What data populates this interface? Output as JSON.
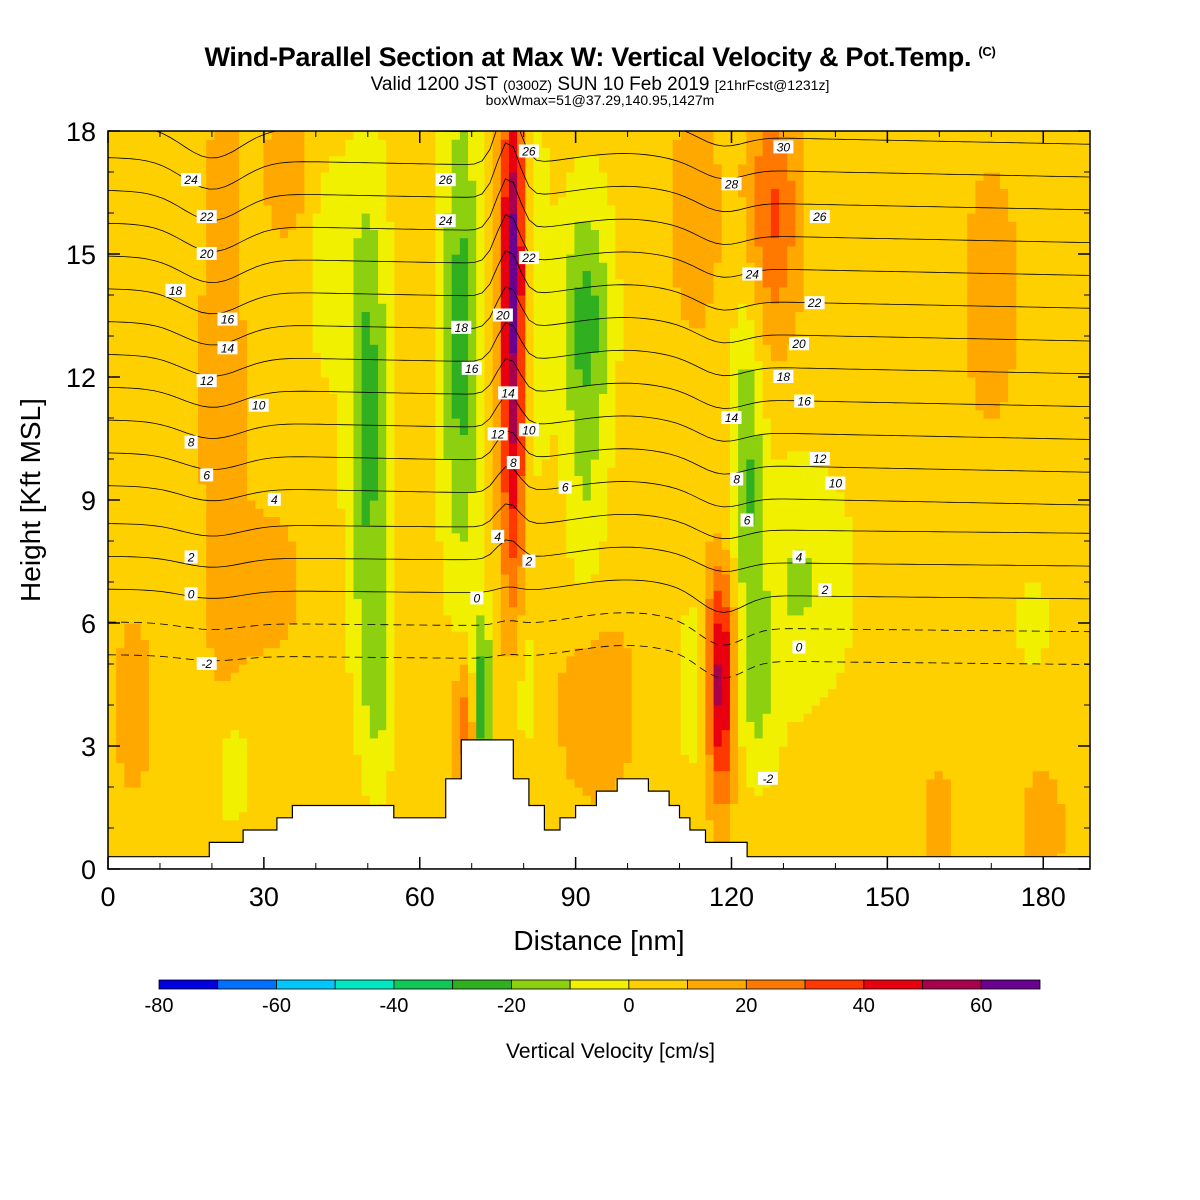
{
  "header": {
    "title": "Wind-Parallel Section at Max W: Vertical Velocity & Pot.Temp.",
    "title_mark": "(C)",
    "valid_a": "Valid 1200 JST ",
    "valid_b": "(0300Z)",
    "valid_c": " SUN 10 Feb 2019 ",
    "valid_d": "[21hrFcst@1231z]",
    "box_info": "boxWmax=51@37.29,140.95,1427m"
  },
  "chart_data": {
    "type": "heatmap",
    "xlabel": "Distance [nm]",
    "ylabel": "Height [Kft MSL]",
    "xlim": [
      0,
      189
    ],
    "ylim": [
      0,
      18
    ],
    "x_ticks": [
      0,
      30,
      60,
      90,
      120,
      150,
      180
    ],
    "y_ticks": [
      0,
      3,
      6,
      9,
      12,
      15,
      18
    ],
    "colorbar": {
      "title": "Vertical Velocity [cm/s]",
      "bounds": [
        -80,
        -70,
        -60,
        -50,
        -40,
        -30,
        -20,
        -10,
        0,
        10,
        20,
        30,
        40,
        50,
        60,
        70
      ],
      "labels": [
        -80,
        -60,
        -40,
        -20,
        0,
        20,
        40,
        60
      ],
      "colors": [
        "#0000e0",
        "#0070ff",
        "#00c8ff",
        "#00e8c0",
        "#10c858",
        "#30b020",
        "#8cd010",
        "#f0f000",
        "#ffd000",
        "#ffa800",
        "#ff7800",
        "#ff3800",
        "#e80010",
        "#a8004c",
        "#6a0090"
      ]
    },
    "background_w": 5,
    "w_features": [
      {
        "x": 22,
        "y": 12,
        "sx": 4,
        "sy": 7,
        "v": 14
      },
      {
        "x": 30,
        "y": 7,
        "sx": 8,
        "sy": 2,
        "v": 10
      },
      {
        "x": 35,
        "y": 17,
        "sx": 6,
        "sy": 2,
        "v": 10
      },
      {
        "x": 50,
        "y": 11,
        "sx": 4,
        "sy": 6,
        "v": -30
      },
      {
        "x": 42,
        "y": 15,
        "sx": 4,
        "sy": 3,
        "v": -12
      },
      {
        "x": 52,
        "y": 4.5,
        "sx": 3,
        "sy": 2.5,
        "v": -14
      },
      {
        "x": 68,
        "y": 13,
        "sx": 4,
        "sy": 6,
        "v": -30
      },
      {
        "x": 72,
        "y": 4,
        "sx": 2,
        "sy": 2,
        "v": -38
      },
      {
        "x": 69,
        "y": 3.6,
        "sx": 2.5,
        "sy": 1.5,
        "v": 26
      },
      {
        "x": 78,
        "y": 12.5,
        "sx": 2.5,
        "sy": 6,
        "v": 52
      },
      {
        "x": 78,
        "y": 16,
        "sx": 2.5,
        "sy": 3,
        "v": 20
      },
      {
        "x": 82,
        "y": 14,
        "sx": 3,
        "sy": 5,
        "v": -14
      },
      {
        "x": 92,
        "y": 13.5,
        "sx": 5,
        "sy": 3,
        "v": -28
      },
      {
        "x": 92,
        "y": 9,
        "sx": 4,
        "sy": 3,
        "v": -12
      },
      {
        "x": 94,
        "y": 4,
        "sx": 8,
        "sy": 2.5,
        "v": 12
      },
      {
        "x": 80,
        "y": 4.5,
        "sx": 3,
        "sy": 2,
        "v": -12
      },
      {
        "x": 112,
        "y": 4.5,
        "sx": 2,
        "sy": 2,
        "v": -14
      },
      {
        "x": 118,
        "y": 4,
        "sx": 2.5,
        "sy": 2.5,
        "v": 42
      },
      {
        "x": 118,
        "y": 6,
        "sx": 3,
        "sy": 2,
        "v": 18
      },
      {
        "x": 123,
        "y": 10,
        "sx": 3,
        "sy": 4,
        "v": -24
      },
      {
        "x": 133,
        "y": 7,
        "sx": 10,
        "sy": 3,
        "v": -16
      },
      {
        "x": 125,
        "y": 4,
        "sx": 4,
        "sy": 2,
        "v": -14
      },
      {
        "x": 128,
        "y": 16,
        "sx": 5,
        "sy": 3,
        "v": 26
      },
      {
        "x": 113,
        "y": 16,
        "sx": 5,
        "sy": 3,
        "v": 12
      },
      {
        "x": 170,
        "y": 14,
        "sx": 5,
        "sy": 3,
        "v": 14
      },
      {
        "x": 178,
        "y": 6,
        "sx": 3,
        "sy": 1,
        "v": -14
      },
      {
        "x": 24,
        "y": 2.3,
        "sx": 3,
        "sy": 1.2,
        "v": -16
      },
      {
        "x": 5,
        "y": 4,
        "sx": 5,
        "sy": 3,
        "v": 8
      },
      {
        "x": 160,
        "y": 1,
        "sx": 3,
        "sy": 1.5,
        "v": 12
      },
      {
        "x": 180,
        "y": 1,
        "sx": 4,
        "sy": 1.5,
        "v": 12
      }
    ],
    "terrain": [
      {
        "x0": 0,
        "x1": 19.5,
        "h": 0.3
      },
      {
        "x0": 19.5,
        "x1": 26,
        "h": 0.65
      },
      {
        "x0": 26,
        "x1": 32.5,
        "h": 0.95
      },
      {
        "x0": 32.5,
        "x1": 35.5,
        "h": 1.25
      },
      {
        "x0": 35.5,
        "x1": 55,
        "h": 1.55
      },
      {
        "x0": 55,
        "x1": 65,
        "h": 1.25
      },
      {
        "x0": 65,
        "x1": 68,
        "h": 2.2
      },
      {
        "x0": 68,
        "x1": 78,
        "h": 3.15
      },
      {
        "x0": 78,
        "x1": 81,
        "h": 2.2
      },
      {
        "x0": 81,
        "x1": 84,
        "h": 1.55
      },
      {
        "x0": 84,
        "x1": 87,
        "h": 0.95
      },
      {
        "x0": 87,
        "x1": 90,
        "h": 1.25
      },
      {
        "x0": 90,
        "x1": 94,
        "h": 1.55
      },
      {
        "x0": 94,
        "x1": 98,
        "h": 1.9
      },
      {
        "x0": 98,
        "x1": 104,
        "h": 2.2
      },
      {
        "x0": 104,
        "x1": 108,
        "h": 1.9
      },
      {
        "x0": 108,
        "x1": 110,
        "h": 1.55
      },
      {
        "x0": 110,
        "x1": 112,
        "h": 1.25
      },
      {
        "x0": 112,
        "x1": 115,
        "h": 0.95
      },
      {
        "x0": 115,
        "x1": 120,
        "h": 0.65
      },
      {
        "x0": 120,
        "x1": 123,
        "h": 0.65
      },
      {
        "x0": 123,
        "x1": 189,
        "h": 0.3
      }
    ],
    "theta_levels": [
      -4,
      -2,
      0,
      2,
      4,
      6,
      8,
      10,
      12,
      14,
      16,
      18,
      20,
      22,
      24,
      26,
      28,
      30
    ],
    "theta_labels": [
      {
        "text": "24",
        "x": 16,
        "y": 16.8
      },
      {
        "text": "22",
        "x": 19,
        "y": 15.9
      },
      {
        "text": "20",
        "x": 19,
        "y": 15.0
      },
      {
        "text": "18",
        "x": 13,
        "y": 14.1
      },
      {
        "text": "16",
        "x": 23,
        "y": 13.4
      },
      {
        "text": "14",
        "x": 23,
        "y": 12.7
      },
      {
        "text": "12",
        "x": 19,
        "y": 11.9
      },
      {
        "text": "10",
        "x": 29,
        "y": 11.3
      },
      {
        "text": "8",
        "x": 16,
        "y": 10.4
      },
      {
        "text": "6",
        "x": 19,
        "y": 9.6
      },
      {
        "text": "4",
        "x": 32,
        "y": 9.0
      },
      {
        "text": "2",
        "x": 16,
        "y": 7.6
      },
      {
        "text": "0",
        "x": 16,
        "y": 6.7
      },
      {
        "text": "-2",
        "x": 19,
        "y": 5.0
      },
      {
        "text": "26",
        "x": 65,
        "y": 16.8
      },
      {
        "text": "24",
        "x": 65,
        "y": 15.8
      },
      {
        "text": "18",
        "x": 68,
        "y": 13.2
      },
      {
        "text": "16",
        "x": 70,
        "y": 12.2
      },
      {
        "text": "20",
        "x": 76,
        "y": 13.5
      },
      {
        "text": "14",
        "x": 77,
        "y": 11.6
      },
      {
        "text": "12",
        "x": 75,
        "y": 10.6
      },
      {
        "text": "10",
        "x": 81,
        "y": 10.7
      },
      {
        "text": "8",
        "x": 78,
        "y": 9.9
      },
      {
        "text": "6",
        "x": 88,
        "y": 9.3
      },
      {
        "text": "4",
        "x": 75,
        "y": 8.1
      },
      {
        "text": "2",
        "x": 81,
        "y": 7.5
      },
      {
        "text": "0",
        "x": 71,
        "y": 6.6
      },
      {
        "text": "26",
        "x": 81,
        "y": 17.5
      },
      {
        "text": "22",
        "x": 81,
        "y": 14.9
      },
      {
        "text": "30",
        "x": 130,
        "y": 17.6
      },
      {
        "text": "28",
        "x": 120,
        "y": 16.7
      },
      {
        "text": "26",
        "x": 137,
        "y": 15.9
      },
      {
        "text": "24",
        "x": 124,
        "y": 14.5
      },
      {
        "text": "22",
        "x": 136,
        "y": 13.8
      },
      {
        "text": "20",
        "x": 133,
        "y": 12.8
      },
      {
        "text": "18",
        "x": 130,
        "y": 12.0
      },
      {
        "text": "16",
        "x": 134,
        "y": 11.4
      },
      {
        "text": "14",
        "x": 120,
        "y": 11.0
      },
      {
        "text": "12",
        "x": 137,
        "y": 10.0
      },
      {
        "text": "10",
        "x": 140,
        "y": 9.4
      },
      {
        "text": "8",
        "x": 121,
        "y": 9.5
      },
      {
        "text": "6",
        "x": 123,
        "y": 8.5
      },
      {
        "text": "4",
        "x": 133,
        "y": 7.6
      },
      {
        "text": "2",
        "x": 138,
        "y": 6.8
      },
      {
        "text": "0",
        "x": 133,
        "y": 5.4
      },
      {
        "text": "-2",
        "x": 127,
        "y": 2.2
      }
    ]
  }
}
